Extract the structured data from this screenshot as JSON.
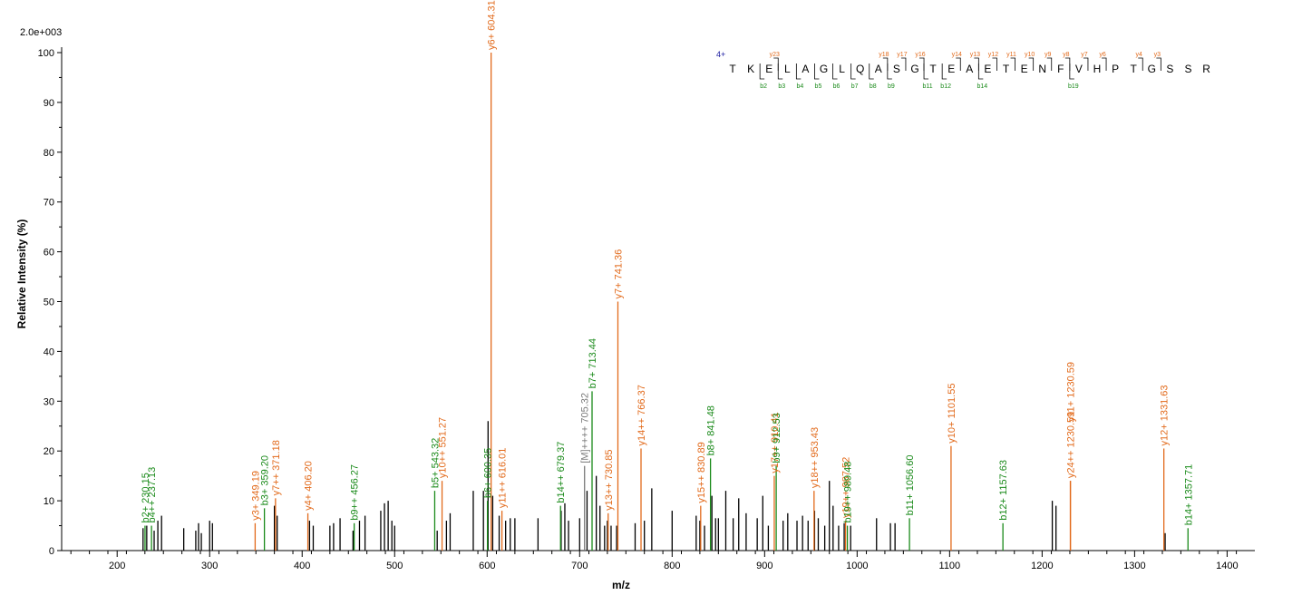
{
  "chart_data": {
    "type": "spectrum",
    "max_intensity_label": "2.0e+003",
    "xlabel": "m/z",
    "ylabel": "Relative   Intensity (%)",
    "xlim": [
      140,
      1430
    ],
    "ylim": [
      0,
      100
    ],
    "x_ticks": [
      200,
      300,
      400,
      500,
      600,
      700,
      800,
      900,
      1000,
      1100,
      1200,
      1300,
      1400
    ],
    "y_ticks": [
      0,
      10,
      20,
      30,
      40,
      50,
      60,
      70,
      80,
      90,
      100
    ],
    "colors": {
      "y_ion": "#e26a1b",
      "b_ion": "#1a8a1a",
      "precursor": "#7a7a7a",
      "unassigned": "#000000"
    },
    "annotated_peaks": [
      {
        "mz": 230.15,
        "intensity": 5,
        "label": "b2+ 230.15",
        "ion": "b"
      },
      {
        "mz": 237.13,
        "intensity": 5,
        "label": "b4++ 237.13",
        "ion": "b"
      },
      {
        "mz": 349.19,
        "intensity": 5.5,
        "label": "y3+ 349.19",
        "ion": "y"
      },
      {
        "mz": 359.2,
        "intensity": 8.5,
        "label": "b3+ 359.20",
        "ion": "b"
      },
      {
        "mz": 371.18,
        "intensity": 10.5,
        "label": "y7++ 371.18",
        "ion": "y"
      },
      {
        "mz": 406.2,
        "intensity": 7.5,
        "label": "y4+ 406.20",
        "ion": "y"
      },
      {
        "mz": 456.27,
        "intensity": 5.5,
        "label": "b9++ 456.27",
        "ion": "b"
      },
      {
        "mz": 543.32,
        "intensity": 12,
        "label": "b5+ 543.32",
        "ion": "b"
      },
      {
        "mz": 551.27,
        "intensity": 14,
        "label": "y10++ 551.27",
        "ion": "y"
      },
      {
        "mz": 600.35,
        "intensity": 10,
        "label": "b6+ 600.35",
        "ion": "b"
      },
      {
        "mz": 604.31,
        "intensity": 100,
        "label": "y6+ 604.31",
        "ion": "y"
      },
      {
        "mz": 616.01,
        "intensity": 8,
        "label": "y11++ 616.01",
        "ion": "y"
      },
      {
        "mz": 679.37,
        "intensity": 9,
        "label": "b14++ 679.37",
        "ion": "b"
      },
      {
        "mz": 705.32,
        "intensity": 17,
        "label": "[M]++++ 705.32",
        "ion": "precursor"
      },
      {
        "mz": 713.44,
        "intensity": 32,
        "label": "b7+ 713.44",
        "ion": "b"
      },
      {
        "mz": 730.85,
        "intensity": 7.5,
        "label": "y13++ 730.85",
        "ion": "y"
      },
      {
        "mz": 741.36,
        "intensity": 50,
        "label": "y7+ 741.36",
        "ion": "y"
      },
      {
        "mz": 766.37,
        "intensity": 20.5,
        "label": "y14++ 766.37",
        "ion": "y"
      },
      {
        "mz": 830.89,
        "intensity": 9,
        "label": "y15++ 830.89",
        "ion": "y"
      },
      {
        "mz": 841.48,
        "intensity": 18.5,
        "label": "b8+ 841.48",
        "ion": "b"
      },
      {
        "mz": 910.41,
        "intensity": 15,
        "label": "y17++ 910.41",
        "ion": "y"
      },
      {
        "mz": 912.53,
        "intensity": 17,
        "label": "b9+ 912.53",
        "ion": "b"
      },
      {
        "mz": 953.43,
        "intensity": 12,
        "label": "y18++ 953.43",
        "ion": "y"
      },
      {
        "mz": 987.52,
        "intensity": 6,
        "label": "y19++ 987.52",
        "ion": "y"
      },
      {
        "mz": 989.48,
        "intensity": 5,
        "label": "b19++ 989.48",
        "ion": "b"
      },
      {
        "mz": 1056.6,
        "intensity": 6.5,
        "label": "b11+ 1056.60",
        "ion": "b"
      },
      {
        "mz": 1101.55,
        "intensity": 21,
        "label": "y10+ 1101.55",
        "ion": "y"
      },
      {
        "mz": 1157.63,
        "intensity": 5.5,
        "label": "b12+ 1157.63",
        "ion": "b"
      },
      {
        "mz": 1230.59,
        "intensity": 14,
        "label": "y24++ 1230.59",
        "ion": "y"
      },
      {
        "mz": 1230.59,
        "intensity": 14,
        "label": "y11+ 1230.59",
        "ion": "y"
      },
      {
        "mz": 1331.63,
        "intensity": 20.5,
        "label": "y12+ 1331.63",
        "ion": "y"
      },
      {
        "mz": 1357.71,
        "intensity": 4.5,
        "label": "b14+ 1357.71",
        "ion": "b"
      }
    ],
    "unlabeled_peaks": [
      [
        228,
        4.5
      ],
      [
        232,
        5
      ],
      [
        240,
        4
      ],
      [
        244,
        6
      ],
      [
        248,
        7
      ],
      [
        272,
        4.5
      ],
      [
        285,
        4
      ],
      [
        288,
        5.5
      ],
      [
        291,
        3.5
      ],
      [
        300,
        6
      ],
      [
        303,
        5.5
      ],
      [
        370,
        9
      ],
      [
        373,
        7
      ],
      [
        408,
        6
      ],
      [
        412,
        5
      ],
      [
        430,
        5
      ],
      [
        434,
        5.5
      ],
      [
        441,
        6.5
      ],
      [
        455,
        4
      ],
      [
        462,
        6
      ],
      [
        468,
        7
      ],
      [
        485,
        8
      ],
      [
        489,
        9.5
      ],
      [
        493,
        10
      ],
      [
        497,
        6
      ],
      [
        500,
        5
      ],
      [
        546,
        4
      ],
      [
        556,
        6
      ],
      [
        560,
        7.5
      ],
      [
        585,
        12
      ],
      [
        596,
        12
      ],
      [
        601,
        26
      ],
      [
        606,
        11
      ],
      [
        613,
        7
      ],
      [
        620,
        6
      ],
      [
        625,
        6.5
      ],
      [
        630,
        6.5
      ],
      [
        655,
        6.5
      ],
      [
        680,
        8
      ],
      [
        684,
        9.5
      ],
      [
        688,
        6
      ],
      [
        700,
        6.5
      ],
      [
        708,
        12
      ],
      [
        718,
        15
      ],
      [
        722,
        9
      ],
      [
        727,
        5
      ],
      [
        730,
        6
      ],
      [
        734,
        5
      ],
      [
        740,
        5
      ],
      [
        760,
        5.5
      ],
      [
        770,
        6
      ],
      [
        778,
        12.5
      ],
      [
        800,
        8
      ],
      [
        826,
        7
      ],
      [
        830,
        6
      ],
      [
        835,
        5
      ],
      [
        843,
        11
      ],
      [
        847,
        6.5
      ],
      [
        850,
        6.5
      ],
      [
        858,
        12
      ],
      [
        866,
        6.5
      ],
      [
        872,
        10.5
      ],
      [
        880,
        7.5
      ],
      [
        892,
        6.5
      ],
      [
        898,
        11
      ],
      [
        904,
        5
      ],
      [
        920,
        6
      ],
      [
        925,
        7.5
      ],
      [
        935,
        6
      ],
      [
        941,
        7
      ],
      [
        947,
        6
      ],
      [
        954,
        8
      ],
      [
        958,
        6.5
      ],
      [
        965,
        5
      ],
      [
        970,
        14
      ],
      [
        974,
        9
      ],
      [
        980,
        5
      ],
      [
        986,
        5.5
      ],
      [
        993,
        5
      ],
      [
        1021,
        6.5
      ],
      [
        1036,
        5.5
      ],
      [
        1041,
        5.5
      ],
      [
        1211,
        10
      ],
      [
        1215,
        9
      ],
      [
        1333,
        3.5
      ]
    ],
    "sequence": {
      "charge": "4+",
      "residues": [
        "T",
        "K",
        "E",
        "L",
        "A",
        "G",
        "L",
        "Q",
        "A",
        "S",
        "G",
        "T",
        "E",
        "A",
        "E",
        "T",
        "E",
        "N",
        "F",
        "V",
        "H",
        "P",
        "T",
        "G",
        "S",
        "S",
        "R"
      ],
      "y_ions": [
        {
          "after": 3,
          "label": "y23"
        },
        {
          "after": 9,
          "label": "y18"
        },
        {
          "after": 10,
          "label": "y17"
        },
        {
          "after": 11,
          "label": "y16"
        },
        {
          "after": 13,
          "label": "y14"
        },
        {
          "after": 14,
          "label": "y13"
        },
        {
          "after": 15,
          "label": "y12"
        },
        {
          "after": 16,
          "label": "y11"
        },
        {
          "after": 17,
          "label": "y10"
        },
        {
          "after": 18,
          "label": "y9"
        },
        {
          "after": 19,
          "label": "y8"
        },
        {
          "after": 20,
          "label": "y7"
        },
        {
          "after": 21,
          "label": "y6"
        },
        {
          "after": 23,
          "label": "y4"
        },
        {
          "after": 24,
          "label": "y3"
        }
      ],
      "b_ions": [
        {
          "after": 2,
          "label": "b2"
        },
        {
          "after": 3,
          "label": "b3"
        },
        {
          "after": 4,
          "label": "b4"
        },
        {
          "after": 5,
          "label": "b5"
        },
        {
          "after": 6,
          "label": "b6"
        },
        {
          "after": 7,
          "label": "b7"
        },
        {
          "after": 8,
          "label": "b8"
        },
        {
          "after": 9,
          "label": "b9"
        },
        {
          "after": 11,
          "label": "b11"
        },
        {
          "after": 12,
          "label": "b12"
        },
        {
          "after": 14,
          "label": "b14"
        },
        {
          "after": 19,
          "label": "b19"
        }
      ]
    }
  }
}
